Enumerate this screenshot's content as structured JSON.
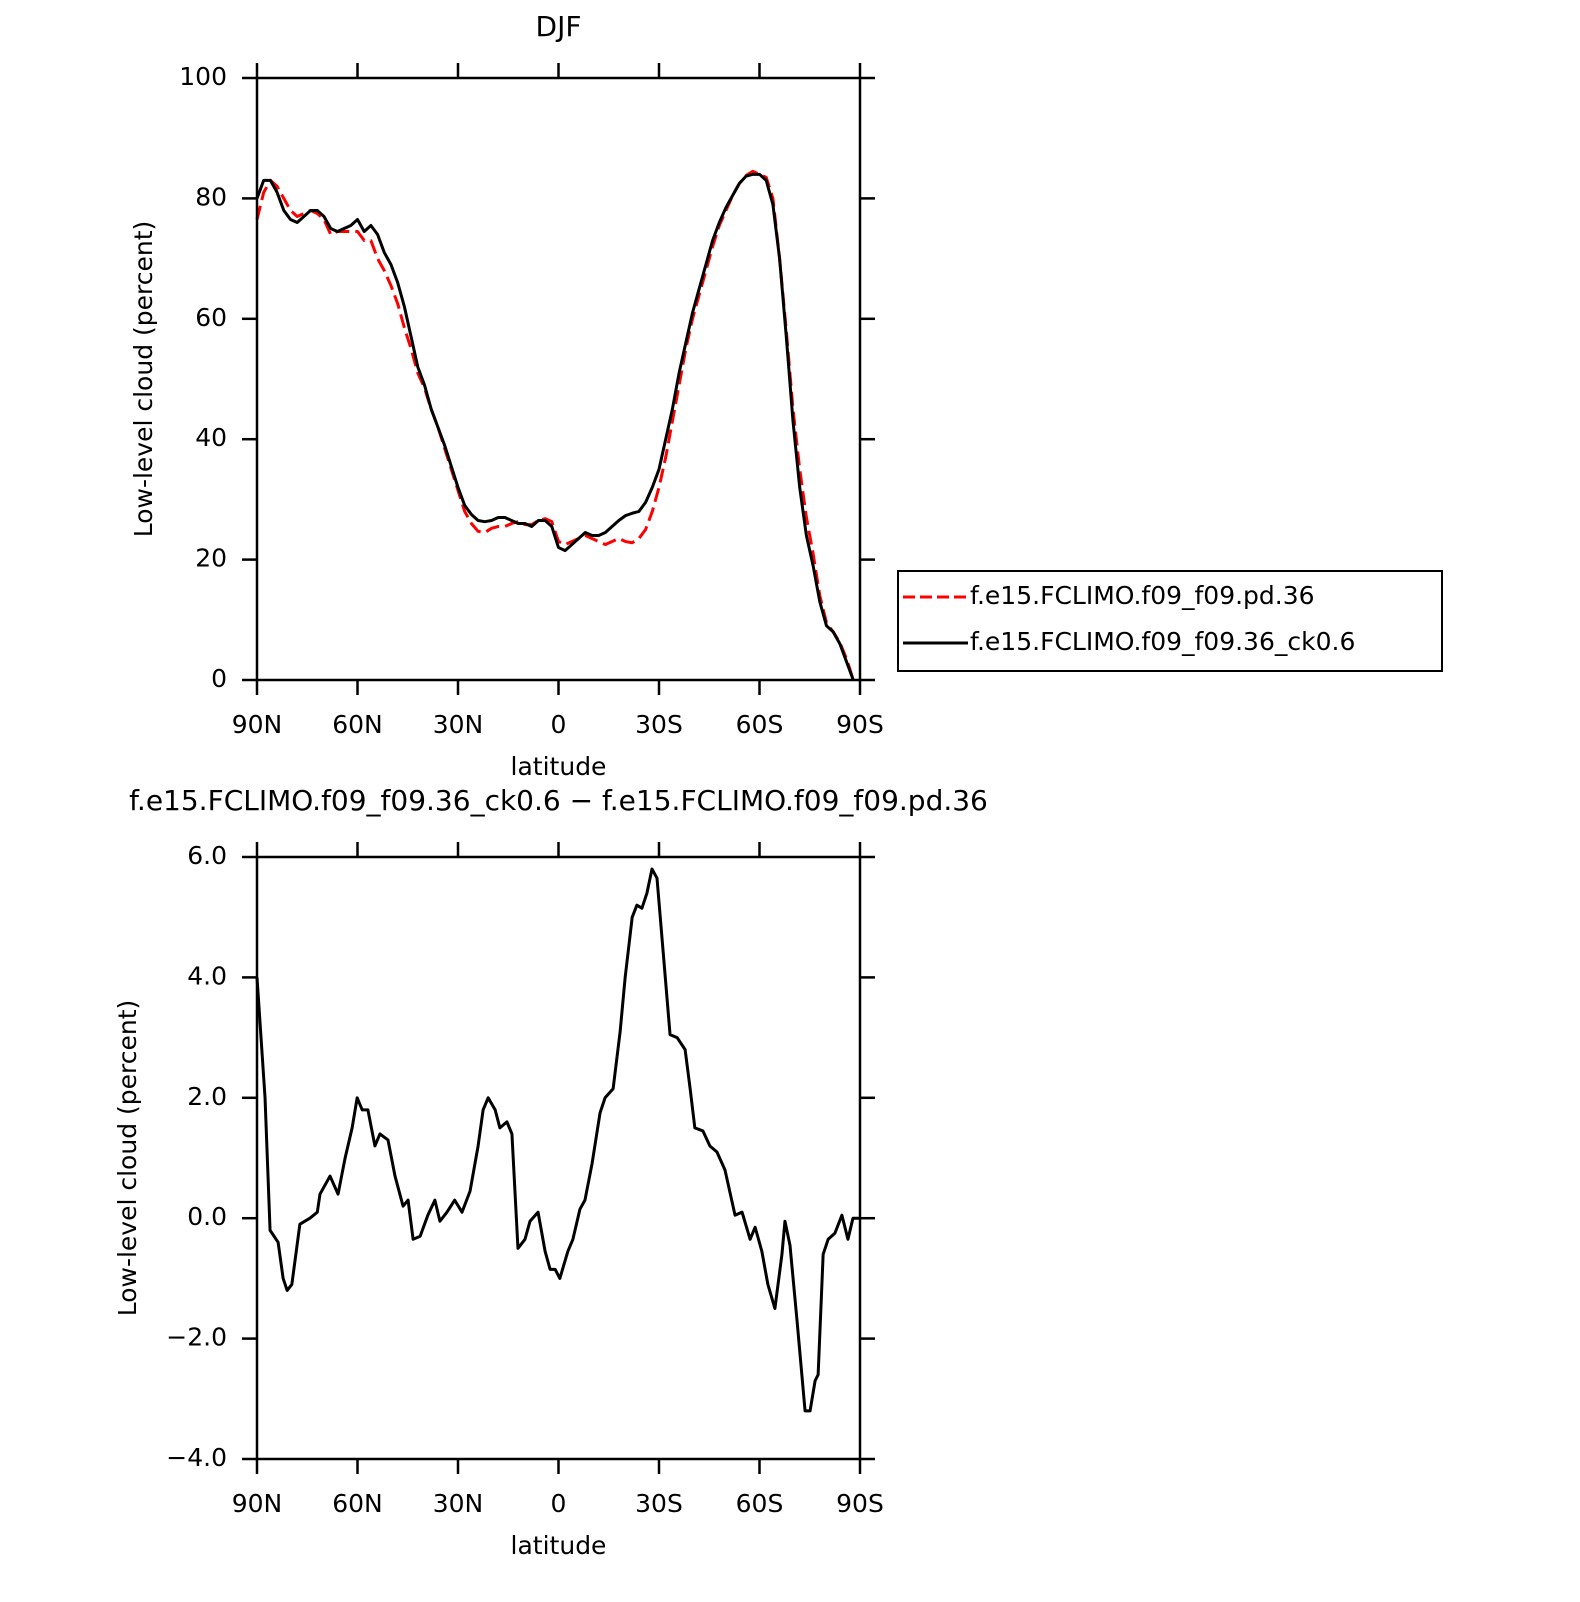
{
  "chart_data": [
    {
      "type": "line",
      "title": "DJF",
      "xlabel": "latitude",
      "ylabel": "Low-level cloud (percent)",
      "x": [
        90,
        88,
        86,
        84,
        82,
        80,
        78,
        76,
        74,
        72,
        70,
        68,
        66,
        64,
        62,
        60,
        58,
        56,
        54,
        52,
        50,
        48,
        46,
        44,
        42,
        40,
        38,
        36,
        34,
        32,
        30,
        28,
        26,
        24,
        22,
        20,
        18,
        16,
        14,
        12,
        10,
        8,
        6,
        4,
        2,
        0,
        -2,
        -4,
        -6,
        -8,
        -10,
        -12,
        -14,
        -16,
        -18,
        -20,
        -22,
        -24,
        -26,
        -28,
        -30,
        -32,
        -34,
        -36,
        -38,
        -40,
        -42,
        -44,
        -46,
        -48,
        -50,
        -52,
        -54,
        -56,
        -58,
        -60,
        -62,
        -64,
        -66,
        -68,
        -70,
        -72,
        -74,
        -76,
        -78,
        -80,
        -82,
        -84,
        -86,
        -88
      ],
      "series": [
        {
          "name": "f.e15.FCLIMO.f09_f09.pd.36",
          "color": "#ff0000",
          "line_style": "dashed",
          "values": [
            76.5,
            81,
            83,
            82,
            80,
            78,
            77,
            77.5,
            78,
            77.5,
            76.5,
            74,
            74.5,
            74.5,
            74.5,
            74.5,
            73,
            73,
            70,
            68,
            65.5,
            62.5,
            58.5,
            55,
            51,
            48.5,
            45,
            42,
            38.5,
            35,
            31.5,
            28,
            26,
            24.7,
            24.5,
            25.2,
            25.5,
            25.5,
            26,
            26.3,
            25.8,
            25.8,
            26.5,
            26.8,
            26.3,
            23,
            22.5,
            23,
            23.5,
            24,
            23.5,
            23,
            22.5,
            23,
            23.5,
            23,
            22.8,
            23.5,
            25,
            28,
            32,
            37,
            43,
            49,
            55,
            60,
            64,
            68,
            72,
            75.5,
            78,
            80.5,
            82.5,
            83.8,
            84.5,
            84,
            83.5,
            80,
            70,
            58,
            45,
            35,
            27,
            21,
            14,
            9.5,
            8,
            6.2,
            3.5,
            0
          ]
        },
        {
          "name": "f.e15.FCLIMO.f09_f09.36_ck0.6",
          "color": "#000000",
          "line_style": "solid",
          "values": [
            80,
            83,
            83,
            81,
            78,
            76.5,
            76,
            77,
            78,
            78,
            77,
            75,
            74.5,
            75,
            75.5,
            76.5,
            74.5,
            75.5,
            74,
            71,
            69,
            66,
            62,
            57,
            52,
            49,
            45,
            42,
            39,
            35.5,
            32,
            29,
            27.5,
            26.5,
            26.3,
            26.5,
            27,
            27,
            26.5,
            26,
            26,
            25.5,
            26.5,
            26.5,
            25.5,
            22,
            21.5,
            22.5,
            23.5,
            24.5,
            24,
            24,
            24.5,
            25.5,
            26.5,
            27.3,
            27.7,
            28,
            29.5,
            32,
            35,
            40,
            45,
            51,
            56,
            61,
            65,
            69,
            73,
            76,
            78.5,
            80.5,
            82.5,
            83.7,
            84,
            84,
            83,
            79,
            70,
            57,
            43,
            32,
            24,
            19,
            13,
            9,
            8,
            6,
            3,
            0
          ]
        }
      ],
      "xlim": [
        90,
        -90
      ],
      "xticks": [
        {
          "value": 90,
          "label": "90N"
        },
        {
          "value": 60,
          "label": "60N"
        },
        {
          "value": 30,
          "label": "30N"
        },
        0,
        {
          "value": -30,
          "label": "30S"
        },
        {
          "value": -60,
          "label": "60S"
        },
        {
          "value": -90,
          "label": "90S"
        }
      ],
      "ylim": [
        0,
        100
      ],
      "yticks": [
        0,
        20,
        40,
        60,
        80,
        100
      ],
      "legend": "right"
    },
    {
      "type": "line",
      "title": "f.e15.FCLIMO.f09_f09.36_ck0.6 − f.e15.FCLIMO.f09_f09.pd.36",
      "xlabel": "latitude",
      "ylabel": "Low-level cloud (percent)",
      "x": [
        90,
        87.6,
        86.1,
        83.7,
        82.2,
        81,
        79.6,
        77.2,
        74.2,
        72,
        71.2,
        68.2,
        65.8,
        63.7,
        61.6,
        60.1,
        58.6,
        56.9,
        54.8,
        53.3,
        50.9,
        48.8,
        46.4,
        44.9,
        43.4,
        41.3,
        39,
        36.9,
        35.4,
        33.3,
        31,
        28.8,
        26.4,
        24,
        22.5,
        21,
        18.9,
        17.5,
        15.4,
        13.9,
        12.1,
        10,
        8.5,
        6.1,
        4,
        2.5,
        1,
        -0.4,
        -2.8,
        -4.3,
        -6.4,
        -7.9,
        -10,
        -12.4,
        -13.9,
        -16.3,
        -18.4,
        -19.9,
        -22,
        -23.4,
        -24.9,
        -26.4,
        -27.9,
        -29.4,
        -31.2,
        -33.3,
        -35.4,
        -37.8,
        -39.3,
        -40.7,
        -43.1,
        -45.2,
        -47.3,
        -49.7,
        -52.7,
        -54.8,
        -57.2,
        -58.7,
        -60.7,
        -62.5,
        -64.6,
        -66.7,
        -67.6,
        -69.1,
        -71.2,
        -73.6,
        -75.1,
        -76.6,
        -77.5,
        -79,
        -80.5,
        -82.5,
        -84.6,
        -86.4,
        -87.9,
        -90
      ],
      "series": [
        {
          "color": "#000000",
          "line_style": "solid",
          "values": [
            4.0,
            2.0,
            -0.2,
            -0.4,
            -1.0,
            -1.2,
            -1.1,
            -0.1,
            0.0,
            0.1,
            0.4,
            0.7,
            0.4,
            1.0,
            1.5,
            2.0,
            1.8,
            1.8,
            1.2,
            1.4,
            1.3,
            0.7,
            0.2,
            0.3,
            -0.35,
            -0.3,
            0.05,
            0.3,
            -0.05,
            0.1,
            0.3,
            0.1,
            0.45,
            1.2,
            1.8,
            2.0,
            1.8,
            1.5,
            1.6,
            1.4,
            -0.5,
            -0.35,
            -0.05,
            0.1,
            -0.55,
            -0.85,
            -0.85,
            -1.0,
            -0.55,
            -0.35,
            0.15,
            0.3,
            0.9,
            1.75,
            2.0,
            2.15,
            3.1,
            4.0,
            5.0,
            5.2,
            5.15,
            5.4,
            5.8,
            5.65,
            4.45,
            3.05,
            3.0,
            2.8,
            2.15,
            1.5,
            1.45,
            1.2,
            1.1,
            0.8,
            0.05,
            0.1,
            -0.35,
            -0.15,
            -0.55,
            -1.1,
            -1.5,
            -0.6,
            -0.05,
            -0.45,
            -1.7,
            -3.2,
            -3.2,
            -2.7,
            -2.6,
            -0.6,
            -0.35,
            -0.25,
            0.05,
            -0.35,
            0.0,
            0.0
          ]
        }
      ],
      "xlim": [
        90,
        -90
      ],
      "xticks": [
        {
          "value": 90,
          "label": "90N"
        },
        {
          "value": 60,
          "label": "60N"
        },
        {
          "value": 30,
          "label": "30N"
        },
        0,
        {
          "value": -30,
          "label": "30S"
        },
        {
          "value": -60,
          "label": "60S"
        },
        {
          "value": -90,
          "label": "90S"
        }
      ],
      "ylim": [
        -4,
        6
      ],
      "yticks": [
        {
          "value": -4,
          "label": "−4.0"
        },
        {
          "value": -2,
          "label": "−2.0"
        },
        {
          "value": 0,
          "label": "0.0"
        },
        {
          "value": 2,
          "label": "2.0"
        },
        {
          "value": 4,
          "label": "4.0"
        },
        {
          "value": 6,
          "label": "6.0"
        }
      ]
    }
  ]
}
